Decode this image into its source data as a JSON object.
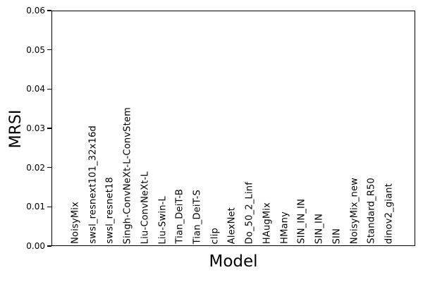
{
  "figure": {
    "background": "#ffffff",
    "text_color": "#000000",
    "axis_color": "#000000"
  },
  "chart_data": {
    "type": "bar",
    "title": "",
    "xlabel": "Model",
    "ylabel": "MRSI",
    "categories": [
      "NoisyMix",
      "swsl_resnext101_32x16d",
      "swsl_resnet18",
      "Singh-ConvNeXt-L-ConvStem",
      "Liu-ConvNeXt-L",
      "Liu-Swin-L",
      "Tian_DeiT-B",
      "Tian_DeiT-S",
      "clip",
      "AlexNet",
      "Do_50_2_Linf",
      "HAugMix",
      "HMany",
      "SIN_IN_IN",
      "SIN_IN",
      "SIN",
      "NoisyMix_new",
      "Standard_R50",
      "dinov2_giant"
    ],
    "values": [
      0,
      0,
      0,
      0,
      0,
      0,
      0,
      0,
      0,
      0,
      0,
      0,
      0,
      0,
      0,
      0,
      0,
      0,
      0
    ],
    "ylim": [
      0,
      0.06
    ],
    "yticks": [
      0.0,
      0.01,
      0.02,
      0.03,
      0.04,
      0.05,
      0.06
    ],
    "ytick_labels": [
      "0.00",
      "0.01",
      "0.02",
      "0.03",
      "0.04",
      "0.05",
      "0.06"
    ],
    "xtick_rotation_deg": 90,
    "grid": false,
    "legend_position": "none"
  }
}
